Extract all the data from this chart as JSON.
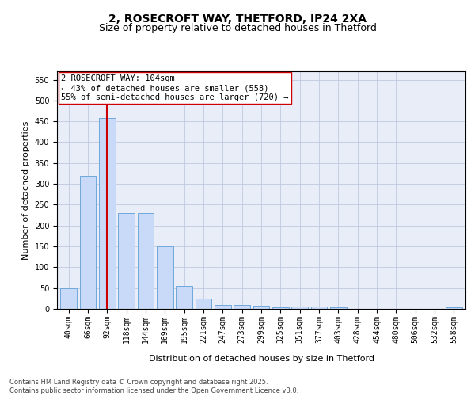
{
  "title1": "2, ROSECROFT WAY, THETFORD, IP24 2XA",
  "title2": "Size of property relative to detached houses in Thetford",
  "xlabel": "Distribution of detached houses by size in Thetford",
  "ylabel": "Number of detached properties",
  "bar_labels": [
    "40sqm",
    "66sqm",
    "92sqm",
    "118sqm",
    "144sqm",
    "169sqm",
    "195sqm",
    "221sqm",
    "247sqm",
    "273sqm",
    "299sqm",
    "325sqm",
    "351sqm",
    "377sqm",
    "403sqm",
    "428sqm",
    "454sqm",
    "480sqm",
    "506sqm",
    "532sqm",
    "558sqm"
  ],
  "bar_values": [
    50,
    320,
    458,
    230,
    230,
    150,
    55,
    25,
    10,
    10,
    8,
    3,
    6,
    6,
    3,
    0,
    0,
    0,
    0,
    0,
    4
  ],
  "bar_color": "#c9daf8",
  "bar_edge_color": "#6fa8dc",
  "vline_x": 2,
  "vline_color": "#cc0000",
  "annotation_text": "2 ROSECROFT WAY: 104sqm\n← 43% of detached houses are smaller (558)\n55% of semi-detached houses are larger (720) →",
  "annotation_box_color": "#ffffff",
  "annotation_box_edge": "#cc0000",
  "ylim": [
    0,
    570
  ],
  "yticks": [
    0,
    50,
    100,
    150,
    200,
    250,
    300,
    350,
    400,
    450,
    500,
    550
  ],
  "grid_color": "#c0c8e0",
  "background_color": "#e8edf8",
  "footnote": "Contains HM Land Registry data © Crown copyright and database right 2025.\nContains public sector information licensed under the Open Government Licence v3.0.",
  "title1_fontsize": 10,
  "title2_fontsize": 9,
  "xlabel_fontsize": 8,
  "ylabel_fontsize": 8,
  "tick_fontsize": 7,
  "annotation_fontsize": 7.5,
  "footnote_fontsize": 6
}
